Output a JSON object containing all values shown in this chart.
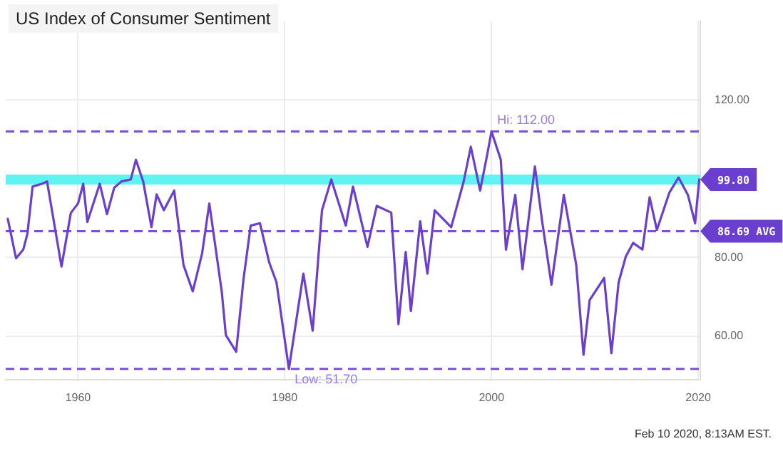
{
  "chart_data": {
    "type": "line",
    "title": "US Index of Consumer Sentiment",
    "x": [
      1953.2,
      1954.0,
      1954.7,
      1955.1,
      1955.6,
      1956.5,
      1957.0,
      1958.4,
      1959.3,
      1960.0,
      1960.5,
      1960.9,
      1962.1,
      1962.8,
      1963.5,
      1964.2,
      1965.1,
      1965.6,
      1966.3,
      1967.1,
      1967.6,
      1968.3,
      1969.3,
      1970.2,
      1971.1,
      1972.0,
      1972.7,
      1973.9,
      1974.3,
      1975.3,
      1976.0,
      1976.7,
      1977.6,
      1978.5,
      1979.2,
      1980.4,
      1981.8,
      1982.7,
      1983.6,
      1984.5,
      1985.9,
      1986.6,
      1988.0,
      1988.9,
      1990.3,
      1991.0,
      1991.7,
      1992.2,
      1993.1,
      1993.8,
      1994.5,
      1996.1,
      1997.3,
      1998.0,
      1998.9,
      1999.6,
      2000.0,
      2000.9,
      2001.4,
      2002.3,
      2003.0,
      2004.2,
      2004.9,
      2005.8,
      2007.0,
      2008.2,
      2008.9,
      2009.5,
      2010.2,
      2010.9,
      2011.6,
      2012.3,
      2013.0,
      2013.7,
      2014.6,
      2015.3,
      2016.0,
      2017.2,
      2018.1,
      2019.0,
      2019.7,
      2020.1
    ],
    "series": [
      {
        "color": "#6a3fd0",
        "values": [
          89.8,
          79.8,
          82,
          86,
          98,
          98.7,
          99.3,
          77.7,
          91.3,
          93.7,
          98.7,
          89,
          98.7,
          91,
          97.7,
          99.3,
          99.8,
          104.8,
          99.3,
          87.7,
          96,
          92,
          97,
          78.1,
          71.4,
          81,
          93.7,
          71.4,
          60.3,
          56.1,
          74.3,
          88.1,
          88.7,
          78.7,
          73.7,
          51.7,
          75.9,
          61.4,
          92,
          99.8,
          88.1,
          98,
          82.7,
          93.1,
          91.4,
          63.1,
          81.4,
          66.4,
          89.2,
          75.9,
          92,
          87.7,
          99.2,
          108.1,
          97,
          106.3,
          112,
          104.8,
          82,
          95.9,
          77,
          103.1,
          89.2,
          73.1,
          95.9,
          78.1,
          55.3,
          69.2,
          72,
          74.8,
          55.7,
          73.7,
          80.3,
          83.7,
          82,
          95.3,
          87,
          96.4,
          100.3,
          95.9,
          88.7,
          99.8
        ]
      }
    ],
    "xlim": [
      1953,
      2020.2
    ],
    "xticks": [
      1960,
      1980,
      2000,
      2020
    ],
    "ylim": [
      49,
      140
    ],
    "yticks": [
      {
        "value": 60,
        "label": "60.00"
      },
      {
        "value": 80,
        "label": "80.00"
      },
      {
        "value": 100,
        "label": null
      },
      {
        "value": 120,
        "label": "120.00"
      }
    ],
    "grid": true,
    "legend": false,
    "marker": "none",
    "line_style": "solid",
    "ref_lines": [
      {
        "axis": "y",
        "value": 112,
        "color": "#7b4fd6",
        "line_style": "dashed"
      },
      {
        "axis": "y",
        "value": 51.7,
        "color": "#7b4fd6",
        "line_style": "dashed"
      },
      {
        "axis": "y",
        "value": 86.69,
        "label": "86.69 AVG",
        "color": "#7b4fd6",
        "line_style": "dashed"
      },
      {
        "axis": "y",
        "value": 99.8,
        "label": "99.80",
        "color": "#5ff3f3",
        "line_style": "solid"
      }
    ],
    "annotations": [
      {
        "text": "Hi: 112.00",
        "x": 2000,
        "y": 112
      },
      {
        "text": "Low: 51.70",
        "x": 1980.4,
        "y": 51.7
      },
      "Feb 10 2020, 8:13AM EST."
    ]
  }
}
